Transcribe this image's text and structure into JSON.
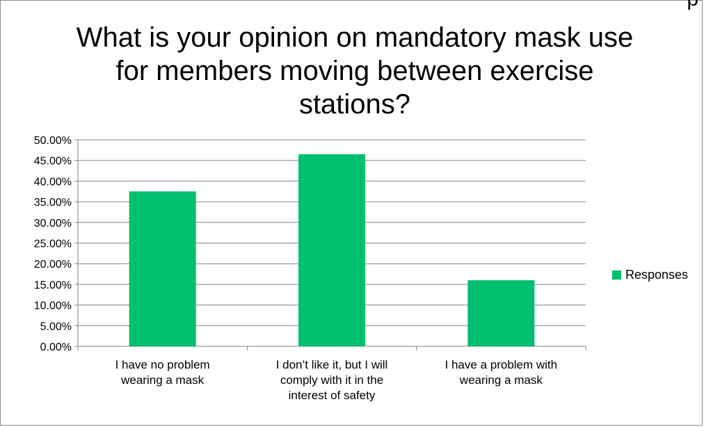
{
  "edge_glyph": "p",
  "chart_data": {
    "type": "bar",
    "title": "What is your opinion on mandatory mask use for members moving between exercise stations?",
    "categories": [
      "I have no problem\nwearing a mask",
      "I don’t like it, but I will\ncomply with it in the\ninterest of safety",
      "I have a problem with\nwearing a mask"
    ],
    "series": [
      {
        "name": "Responses",
        "values": [
          0.375,
          0.465,
          0.16
        ]
      }
    ],
    "ylim": [
      0,
      0.5
    ],
    "yticks": [
      "0.00%",
      "5.00%",
      "10.00%",
      "15.00%",
      "20.00%",
      "25.00%",
      "30.00%",
      "35.00%",
      "40.00%",
      "45.00%",
      "50.00%"
    ],
    "grid": true,
    "legend_position": "right",
    "colors": {
      "bar": "#00BF6F",
      "grid": "#868686",
      "axis": "#868686"
    }
  }
}
